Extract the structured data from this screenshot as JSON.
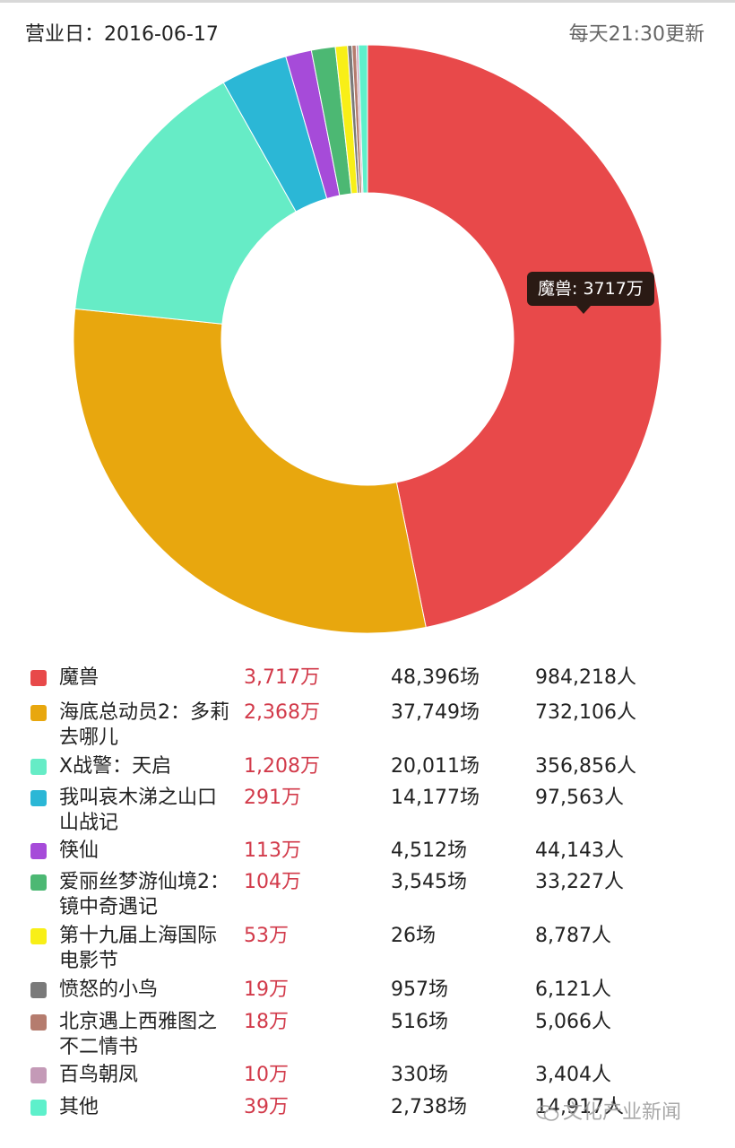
{
  "header": {
    "business_date": "营业日：2016-06-17",
    "update_note": "每天21:30更新"
  },
  "tooltip": {
    "text": "魔兽: 3717万"
  },
  "chart_data": {
    "type": "pie",
    "style": "donut",
    "unit": "万",
    "slices": [
      {
        "label": "魔兽",
        "value": 3717,
        "color": "#e8494a"
      },
      {
        "label": "海底总动员2：多莉去哪儿",
        "value": 2368,
        "color": "#e8a70e"
      },
      {
        "label": "X战警：天启",
        "value": 1208,
        "color": "#66ecc6"
      },
      {
        "label": "我叫哀木涕之山口山战记",
        "value": 291,
        "color": "#2bb7d6"
      },
      {
        "label": "筷仙",
        "value": 113,
        "color": "#a64bd9"
      },
      {
        "label": "爱丽丝梦游仙境2：镜中奇遇记",
        "value": 104,
        "color": "#4cb873"
      },
      {
        "label": "第十九届上海国际电影节",
        "value": 53,
        "color": "#f8ef17"
      },
      {
        "label": "愤怒的小鸟",
        "value": 19,
        "color": "#7a7a7a"
      },
      {
        "label": "北京遇上西雅图之不二情书",
        "value": 18,
        "color": "#b57c6e"
      },
      {
        "label": "百鸟朝凤",
        "value": 10,
        "color": "#c49ab7"
      },
      {
        "label": "其他",
        "value": 39,
        "color": "#5ef0cb"
      }
    ]
  },
  "legend": [
    {
      "name": "魔兽",
      "gross": "3,717万",
      "shows": "48,396场",
      "people": "984,218人"
    },
    {
      "name": "海底总动员2：多莉去哪儿",
      "gross": "2,368万",
      "shows": "37,749场",
      "people": "732,106人"
    },
    {
      "name": "X战警：天启",
      "gross": "1,208万",
      "shows": "20,011场",
      "people": "356,856人"
    },
    {
      "name": "我叫哀木涕之山口山战记",
      "gross": "291万",
      "shows": "14,177场",
      "people": "97,563人"
    },
    {
      "name": "筷仙",
      "gross": "113万",
      "shows": "4,512场",
      "people": "44,143人"
    },
    {
      "name": "爱丽丝梦游仙境2：镜中奇遇记",
      "gross": "104万",
      "shows": "3,545场",
      "people": "33,227人"
    },
    {
      "name": "第十九届上海国际电影节",
      "gross": "53万",
      "shows": "26场",
      "people": "8,787人"
    },
    {
      "name": "愤怒的小鸟",
      "gross": "19万",
      "shows": "957场",
      "people": "6,121人"
    },
    {
      "name": "北京遇上西雅图之不二情书",
      "gross": "18万",
      "shows": "516场",
      "people": "5,066人"
    },
    {
      "name": "百鸟朝凤",
      "gross": "10万",
      "shows": "330场",
      "people": "3,404人"
    },
    {
      "name": "其他",
      "gross": "39万",
      "shows": "2,738场",
      "people": "14,917人"
    }
  ],
  "watermark": {
    "text": "文化产业新闻",
    "icon": "wechat-icon"
  }
}
